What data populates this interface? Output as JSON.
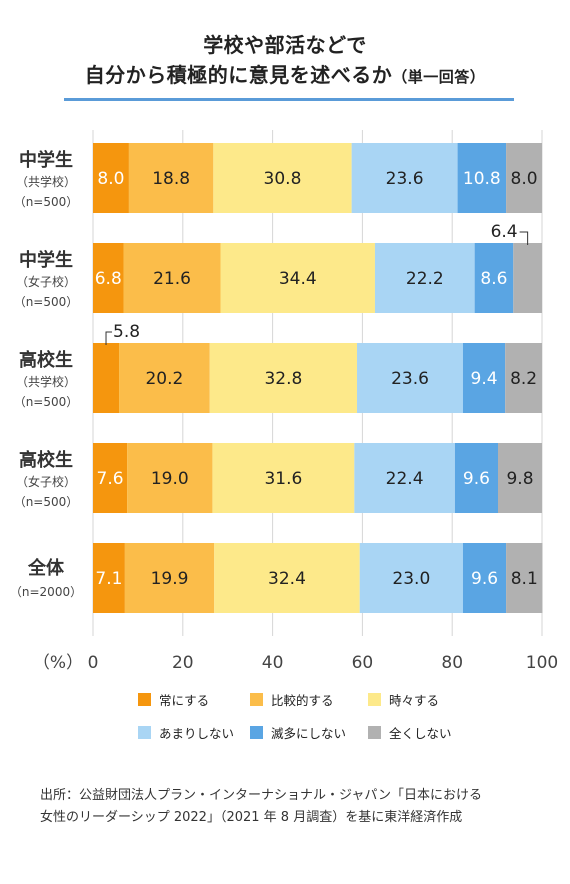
{
  "title": {
    "line1": "学校や部活などで",
    "line2_main": "自分から積極的に意見を述べるか",
    "line2_note": "（単一回答）"
  },
  "chart_data": {
    "type": "bar",
    "orientation": "horizontal",
    "stacked": true,
    "x_axis_unit_label": "（%）",
    "xlim": [
      0,
      100
    ],
    "x_ticks": [
      "0",
      "20",
      "40",
      "60",
      "80",
      "100"
    ],
    "grid": true,
    "legend_position": "bottom",
    "categories": [
      {
        "name": "中学生",
        "sub": "（共学校）",
        "n": "（n=500）"
      },
      {
        "name": "中学生",
        "sub": "（女子校）",
        "n": "（n=500）"
      },
      {
        "name": "高校生",
        "sub": "（共学校）",
        "n": "（n=500）"
      },
      {
        "name": "高校生",
        "sub": "（女子校）",
        "n": "（n=500）"
      },
      {
        "name": "全体",
        "sub": "",
        "n": "（n=2000）"
      }
    ],
    "series": [
      {
        "name": "常にする",
        "color": "#f5960e",
        "label_color": "#ffffff",
        "values": [
          8.0,
          6.8,
          5.8,
          7.6,
          7.1
        ],
        "labels": [
          "8.0",
          "6.8",
          "5.8",
          "7.6",
          "7.1"
        ]
      },
      {
        "name": "比較的する",
        "color": "#fbbd4a",
        "label_color": "#222222",
        "values": [
          18.8,
          21.6,
          20.2,
          19.0,
          19.9
        ],
        "labels": [
          "18.8",
          "21.6",
          "20.2",
          "19.0",
          "19.9"
        ]
      },
      {
        "name": "時々する",
        "color": "#fde98a",
        "label_color": "#222222",
        "values": [
          30.8,
          34.4,
          32.8,
          31.6,
          32.4
        ],
        "labels": [
          "30.8",
          "34.4",
          "32.8",
          "31.6",
          "32.4"
        ]
      },
      {
        "name": "あまりしない",
        "color": "#a9d5f4",
        "label_color": "#222222",
        "values": [
          23.6,
          22.2,
          23.6,
          22.4,
          23.0
        ],
        "labels": [
          "23.6",
          "22.2",
          "23.6",
          "22.4",
          "23.0"
        ]
      },
      {
        "name": "滅多にしない",
        "color": "#5aa5e3",
        "label_color": "#ffffff",
        "values": [
          10.8,
          8.6,
          9.4,
          9.6,
          9.6
        ],
        "labels": [
          "10.8",
          "8.6",
          "9.4",
          "9.6",
          "9.6"
        ]
      },
      {
        "name": "全くしない",
        "color": "#b1b1b1",
        "label_color": "#222222",
        "values": [
          8.0,
          6.4,
          8.2,
          9.8,
          8.1
        ],
        "labels": [
          "8.0",
          "6.4",
          "8.2",
          "9.8",
          "8.1"
        ]
      }
    ]
  },
  "source": {
    "line1": "出所：公益財団法人プラン・インターナショナル・ジャパン「日本における",
    "line2": "女性のリーダーシップ 2022」（2021 年 8 月調査）を基に東洋経済作成"
  }
}
